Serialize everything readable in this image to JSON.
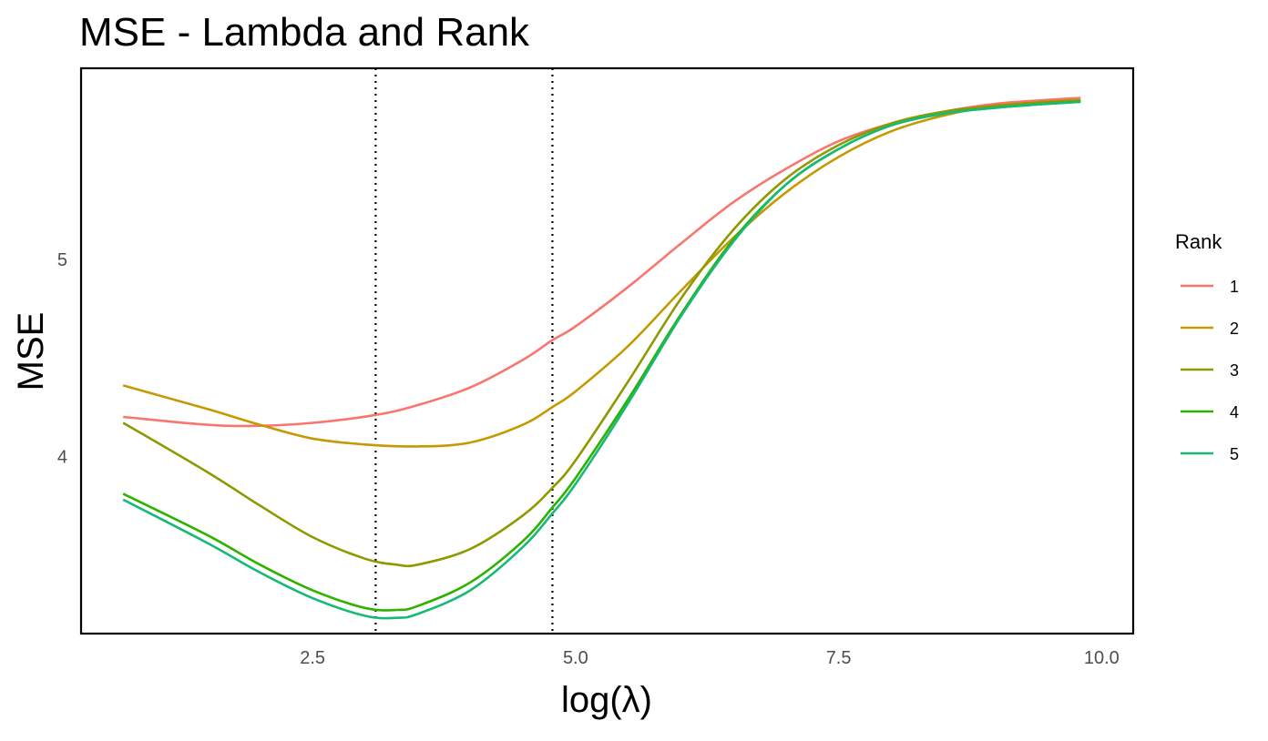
{
  "chart_data": {
    "type": "line",
    "title": "MSE - Lambda and Rank",
    "xlabel": "log(λ)",
    "ylabel": "MSE",
    "xlim": [
      0.3,
      10.3
    ],
    "ylim": [
      3.1,
      5.97
    ],
    "x_ticks": [
      2.5,
      5.0,
      7.5,
      10.0
    ],
    "x_tick_labels": [
      "2.5",
      "5.0",
      "7.5",
      "10.0"
    ],
    "y_ticks": [
      4,
      5
    ],
    "y_tick_labels": [
      "4",
      "5"
    ],
    "grid": false,
    "legend": {
      "title": "Rank",
      "position": "right"
    },
    "vlines": [
      {
        "x": 3.1,
        "style": "dotted",
        "color": "#000000"
      },
      {
        "x": 4.78,
        "style": "dotted",
        "color": "#000000"
      }
    ],
    "series": [
      {
        "name": "1",
        "color": "#F8766D",
        "x": [
          0.7,
          1.5,
          2.0,
          2.5,
          3.1,
          3.5,
          4.0,
          4.5,
          4.78,
          5.0,
          5.5,
          6.0,
          6.5,
          7.0,
          7.5,
          8.0,
          8.5,
          9.0,
          9.5,
          9.8
        ],
        "y": [
          4.2,
          4.16,
          4.155,
          4.17,
          4.21,
          4.26,
          4.35,
          4.49,
          4.59,
          4.66,
          4.86,
          5.08,
          5.29,
          5.46,
          5.6,
          5.69,
          5.75,
          5.79,
          5.81,
          5.82
        ]
      },
      {
        "name": "2",
        "color": "#C49A00",
        "x": [
          0.7,
          1.5,
          2.0,
          2.5,
          3.0,
          3.5,
          4.0,
          4.5,
          4.78,
          5.0,
          5.5,
          6.0,
          6.5,
          7.0,
          7.5,
          8.0,
          8.5,
          9.0,
          9.5,
          9.8
        ],
        "y": [
          4.36,
          4.24,
          4.16,
          4.09,
          4.06,
          4.05,
          4.07,
          4.16,
          4.25,
          4.33,
          4.56,
          4.84,
          5.11,
          5.34,
          5.52,
          5.65,
          5.73,
          5.78,
          5.8,
          5.81
        ]
      },
      {
        "name": "3",
        "color": "#8E9A00",
        "x": [
          0.7,
          1.5,
          2.0,
          2.5,
          3.0,
          3.3,
          3.5,
          4.0,
          4.5,
          4.78,
          5.0,
          5.5,
          6.0,
          6.5,
          7.0,
          7.5,
          8.0,
          8.5,
          9.0,
          9.5,
          9.8
        ],
        "y": [
          4.17,
          3.92,
          3.75,
          3.59,
          3.48,
          3.45,
          3.45,
          3.53,
          3.7,
          3.84,
          3.98,
          4.38,
          4.8,
          5.15,
          5.41,
          5.58,
          5.69,
          5.75,
          5.78,
          5.8,
          5.805
        ]
      },
      {
        "name": "4",
        "color": "#2EB200",
        "x": [
          0.7,
          1.5,
          2.0,
          2.5,
          3.0,
          3.3,
          3.5,
          4.0,
          4.5,
          4.78,
          5.0,
          5.5,
          6.0,
          6.5,
          7.0,
          7.5,
          8.0,
          8.5,
          9.0,
          9.5,
          9.8
        ],
        "y": [
          3.81,
          3.6,
          3.45,
          3.32,
          3.23,
          3.22,
          3.24,
          3.36,
          3.57,
          3.74,
          3.89,
          4.29,
          4.72,
          5.1,
          5.38,
          5.56,
          5.68,
          5.74,
          5.77,
          5.79,
          5.8
        ]
      },
      {
        "name": "5",
        "color": "#17B978",
        "x": [
          0.7,
          1.5,
          2.0,
          2.5,
          3.0,
          3.3,
          3.5,
          4.0,
          4.5,
          4.78,
          5.0,
          5.5,
          6.0,
          6.5,
          7.0,
          7.5,
          8.0,
          8.5,
          9.0,
          9.5,
          9.8
        ],
        "y": [
          3.78,
          3.56,
          3.41,
          3.28,
          3.19,
          3.18,
          3.2,
          3.32,
          3.54,
          3.71,
          3.86,
          4.27,
          4.71,
          5.09,
          5.38,
          5.56,
          5.68,
          5.74,
          5.77,
          5.79,
          5.8
        ]
      }
    ]
  }
}
